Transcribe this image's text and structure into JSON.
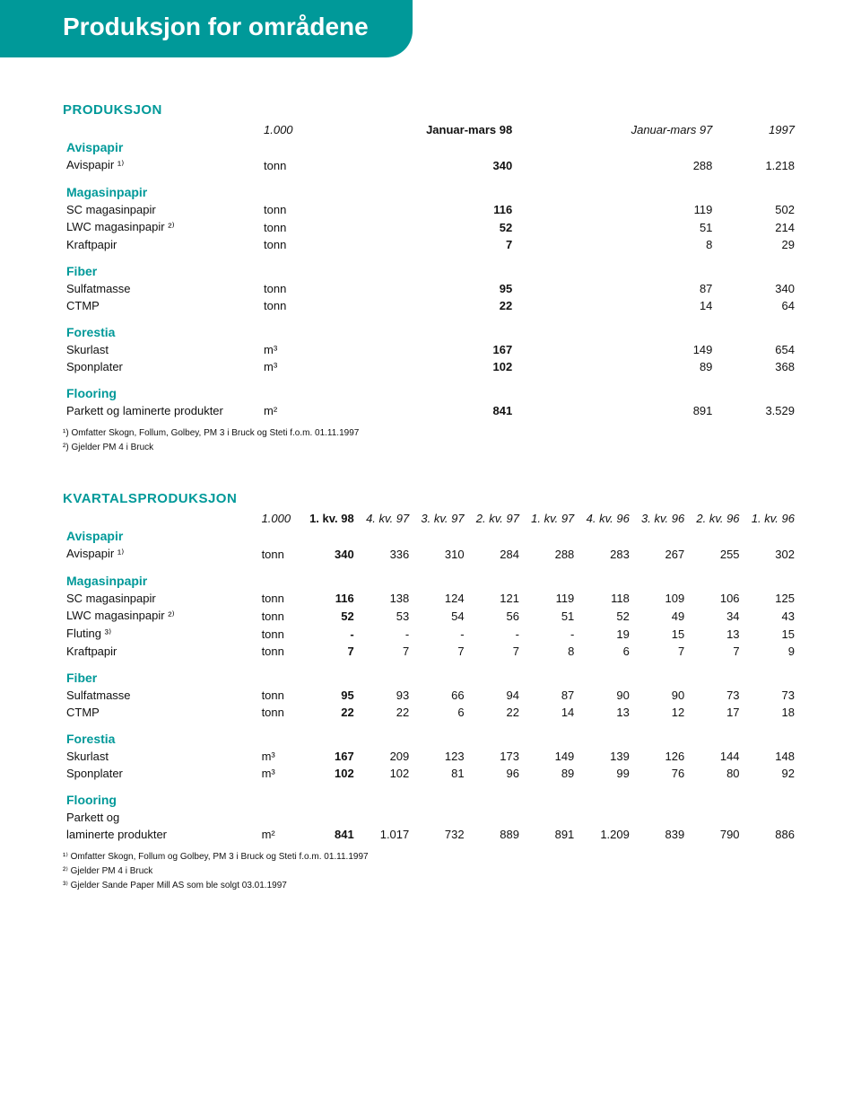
{
  "banner_title": "Produksjon for områdene",
  "colors": {
    "accent": "#009999",
    "text": "#111111",
    "background": "#ffffff"
  },
  "table1": {
    "title": "PRODUKSJON",
    "headers": {
      "unit_scale": "1.000",
      "c1": "Januar-mars 98",
      "c2": "Januar-mars 97",
      "c3": "1997"
    },
    "groups": [
      {
        "name": "Avispapir",
        "rows": [
          {
            "label": "Avispapir ¹⁾",
            "unit": "tonn",
            "v": [
              "340",
              "288",
              "1.218"
            ]
          }
        ]
      },
      {
        "name": "Magasinpapir",
        "rows": [
          {
            "label": "SC magasinpapir",
            "unit": "tonn",
            "v": [
              "116",
              "119",
              "502"
            ]
          },
          {
            "label": "LWC magasinpapir ²⁾",
            "unit": "tonn",
            "v": [
              "52",
              "51",
              "214"
            ]
          },
          {
            "label": "Kraftpapir",
            "unit": "tonn",
            "v": [
              "7",
              "8",
              "29"
            ]
          }
        ]
      },
      {
        "name": "Fiber",
        "rows": [
          {
            "label": "Sulfatmasse",
            "unit": "tonn",
            "v": [
              "95",
              "87",
              "340"
            ]
          },
          {
            "label": "CTMP",
            "unit": "tonn",
            "v": [
              "22",
              "14",
              "64"
            ]
          }
        ]
      },
      {
        "name": "Forestia",
        "rows": [
          {
            "label": "Skurlast",
            "unit": "m³",
            "v": [
              "167",
              "149",
              "654"
            ]
          },
          {
            "label": "Sponplater",
            "unit": "m³",
            "v": [
              "102",
              "89",
              "368"
            ]
          }
        ]
      },
      {
        "name": "Flooring",
        "rows": [
          {
            "label": "Parkett og laminerte produkter",
            "unit": "m²",
            "v": [
              "841",
              "891",
              "3.529"
            ]
          }
        ]
      }
    ],
    "footnotes": [
      "¹) Omfatter Skogn, Follum, Golbey, PM 3 i Bruck og Steti f.o.m. 01.11.1997",
      "²) Gjelder PM 4 i Bruck"
    ]
  },
  "table2": {
    "title": "KVARTALSPRODUKSJON",
    "headers": {
      "unit_scale": "1.000",
      "cols": [
        "1. kv. 98",
        "4. kv. 97",
        "3. kv. 97",
        "2. kv. 97",
        "1. kv. 97",
        "4. kv. 96",
        "3. kv. 96",
        "2. kv. 96",
        "1. kv. 96"
      ]
    },
    "groups": [
      {
        "name": "Avispapir",
        "rows": [
          {
            "label": "Avispapir ¹⁾",
            "unit": "tonn",
            "v": [
              "340",
              "336",
              "310",
              "284",
              "288",
              "283",
              "267",
              "255",
              "302"
            ]
          }
        ]
      },
      {
        "name": "Magasinpapir",
        "rows": [
          {
            "label": "SC magasinpapir",
            "unit": "tonn",
            "v": [
              "116",
              "138",
              "124",
              "121",
              "119",
              "118",
              "109",
              "106",
              "125"
            ]
          },
          {
            "label": "LWC magasinpapir ²⁾",
            "unit": "tonn",
            "v": [
              "52",
              "53",
              "54",
              "56",
              "51",
              "52",
              "49",
              "34",
              "43"
            ]
          },
          {
            "label": "Fluting ³⁾",
            "unit": "tonn",
            "v": [
              "-",
              "-",
              "-",
              "-",
              "-",
              "19",
              "15",
              "13",
              "15"
            ]
          },
          {
            "label": "Kraftpapir",
            "unit": "tonn",
            "v": [
              "7",
              "7",
              "7",
              "7",
              "8",
              "6",
              "7",
              "7",
              "9"
            ]
          }
        ]
      },
      {
        "name": "Fiber",
        "rows": [
          {
            "label": "Sulfatmasse",
            "unit": "tonn",
            "v": [
              "95",
              "93",
              "66",
              "94",
              "87",
              "90",
              "90",
              "73",
              "73"
            ]
          },
          {
            "label": "CTMP",
            "unit": "tonn",
            "v": [
              "22",
              "22",
              "6",
              "22",
              "14",
              "13",
              "12",
              "17",
              "18"
            ]
          }
        ]
      },
      {
        "name": "Forestia",
        "rows": [
          {
            "label": "Skurlast",
            "unit": "m³",
            "v": [
              "167",
              "209",
              "123",
              "173",
              "149",
              "139",
              "126",
              "144",
              "148"
            ]
          },
          {
            "label": "Sponplater",
            "unit": "m³",
            "v": [
              "102",
              "102",
              "81",
              "96",
              "89",
              "99",
              "76",
              "80",
              "92"
            ]
          }
        ]
      },
      {
        "name": "Flooring",
        "rows": [
          {
            "label": "Parkett og",
            "unit": "",
            "v": [
              "",
              "",
              "",
              "",
              "",
              "",
              "",
              "",
              ""
            ]
          },
          {
            "label": "laminerte produkter",
            "unit": "m²",
            "v": [
              "841",
              "1.017",
              "732",
              "889",
              "891",
              "1.209",
              "839",
              "790",
              "886"
            ]
          }
        ]
      }
    ],
    "footnotes": [
      "¹⁾ Omfatter Skogn, Follum og Golbey, PM 3 i Bruck og Steti f.o.m. 01.11.1997",
      "²⁾ Gjelder PM 4 i Bruck",
      "³⁾ Gjelder Sande Paper Mill AS som ble solgt 03.01.1997"
    ]
  }
}
